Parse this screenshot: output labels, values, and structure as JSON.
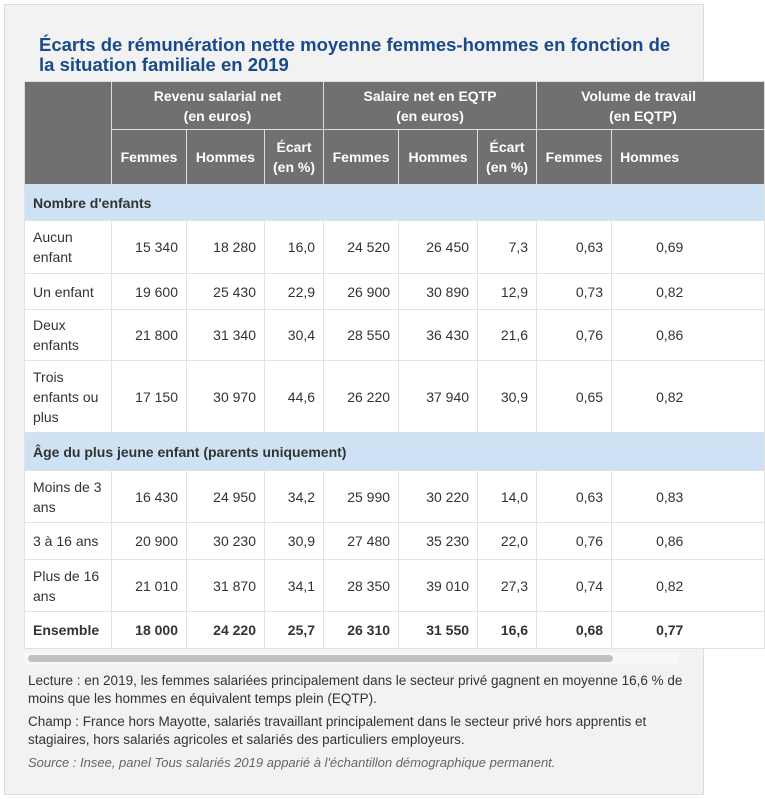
{
  "title": "Écarts de rémunération nette moyenne femmes-hommes en fonction de la situation familiale en 2019",
  "groups": [
    {
      "label": "Revenu salarial net",
      "unit": "(en euros)"
    },
    {
      "label": "Salaire net en EQTP",
      "unit": "(en euros)"
    },
    {
      "label": "Volume de travail",
      "unit": "(en EQTP)"
    }
  ],
  "subheaders": [
    "Femmes",
    "Hommes",
    "Écart (en %)",
    "Femmes",
    "Hommes",
    "Écart (en %)",
    "Femmes",
    "Hommes"
  ],
  "sections": [
    {
      "label": "Nombre d'enfants",
      "rows": [
        {
          "label": "Aucun enfant",
          "values": [
            "15 340",
            "18 280",
            "16,0",
            "24 520",
            "26 450",
            "7,3",
            "0,63",
            "0,69"
          ]
        },
        {
          "label": "Un enfant",
          "values": [
            "19 600",
            "25 430",
            "22,9",
            "26 900",
            "30 890",
            "12,9",
            "0,73",
            "0,82"
          ]
        },
        {
          "label": "Deux enfants",
          "values": [
            "21 800",
            "31 340",
            "30,4",
            "28 550",
            "36 430",
            "21,6",
            "0,76",
            "0,86"
          ]
        },
        {
          "label": "Trois enfants ou plus",
          "values": [
            "17 150",
            "30 970",
            "44,6",
            "26 220",
            "37 940",
            "30,9",
            "0,65",
            "0,82"
          ]
        }
      ]
    },
    {
      "label": "Âge du plus jeune enfant (parents uniquement)",
      "rows": [
        {
          "label": "Moins de 3 ans",
          "values": [
            "16 430",
            "24 950",
            "34,2",
            "25 990",
            "30 220",
            "14,0",
            "0,63",
            "0,83"
          ]
        },
        {
          "label": "3 à 16 ans",
          "values": [
            "20 900",
            "30 230",
            "30,9",
            "27 480",
            "35 230",
            "22,0",
            "0,76",
            "0,86"
          ]
        },
        {
          "label": "Plus de 16 ans",
          "values": [
            "21 010",
            "31 870",
            "34,1",
            "28 350",
            "39 010",
            "27,3",
            "0,74",
            "0,82"
          ]
        }
      ]
    }
  ],
  "total": {
    "label": "Ensemble",
    "values": [
      "18 000",
      "24 220",
      "25,7",
      "26 310",
      "31 550",
      "16,6",
      "0,68",
      "0,77"
    ]
  },
  "notes": {
    "lecture": "Lecture : en 2019, les femmes salariées principalement dans le secteur privé gagnent en moyenne 16,6 % de moins que les hommes en équivalent temps plein (EQTP).",
    "champ": "Champ : France hors Mayotte, salariés travaillant principalement dans le secteur privé hors apprentis et stagiaires, hors salariés agricoles et salariés des particuliers employeurs.",
    "source": "Source : Insee, panel Tous salariés 2019 apparié à l'échantillon démographique permanent."
  },
  "colors": {
    "title": "#1a4a8a",
    "header_bg": "#707070",
    "section_bg": "#cfe2f5"
  }
}
